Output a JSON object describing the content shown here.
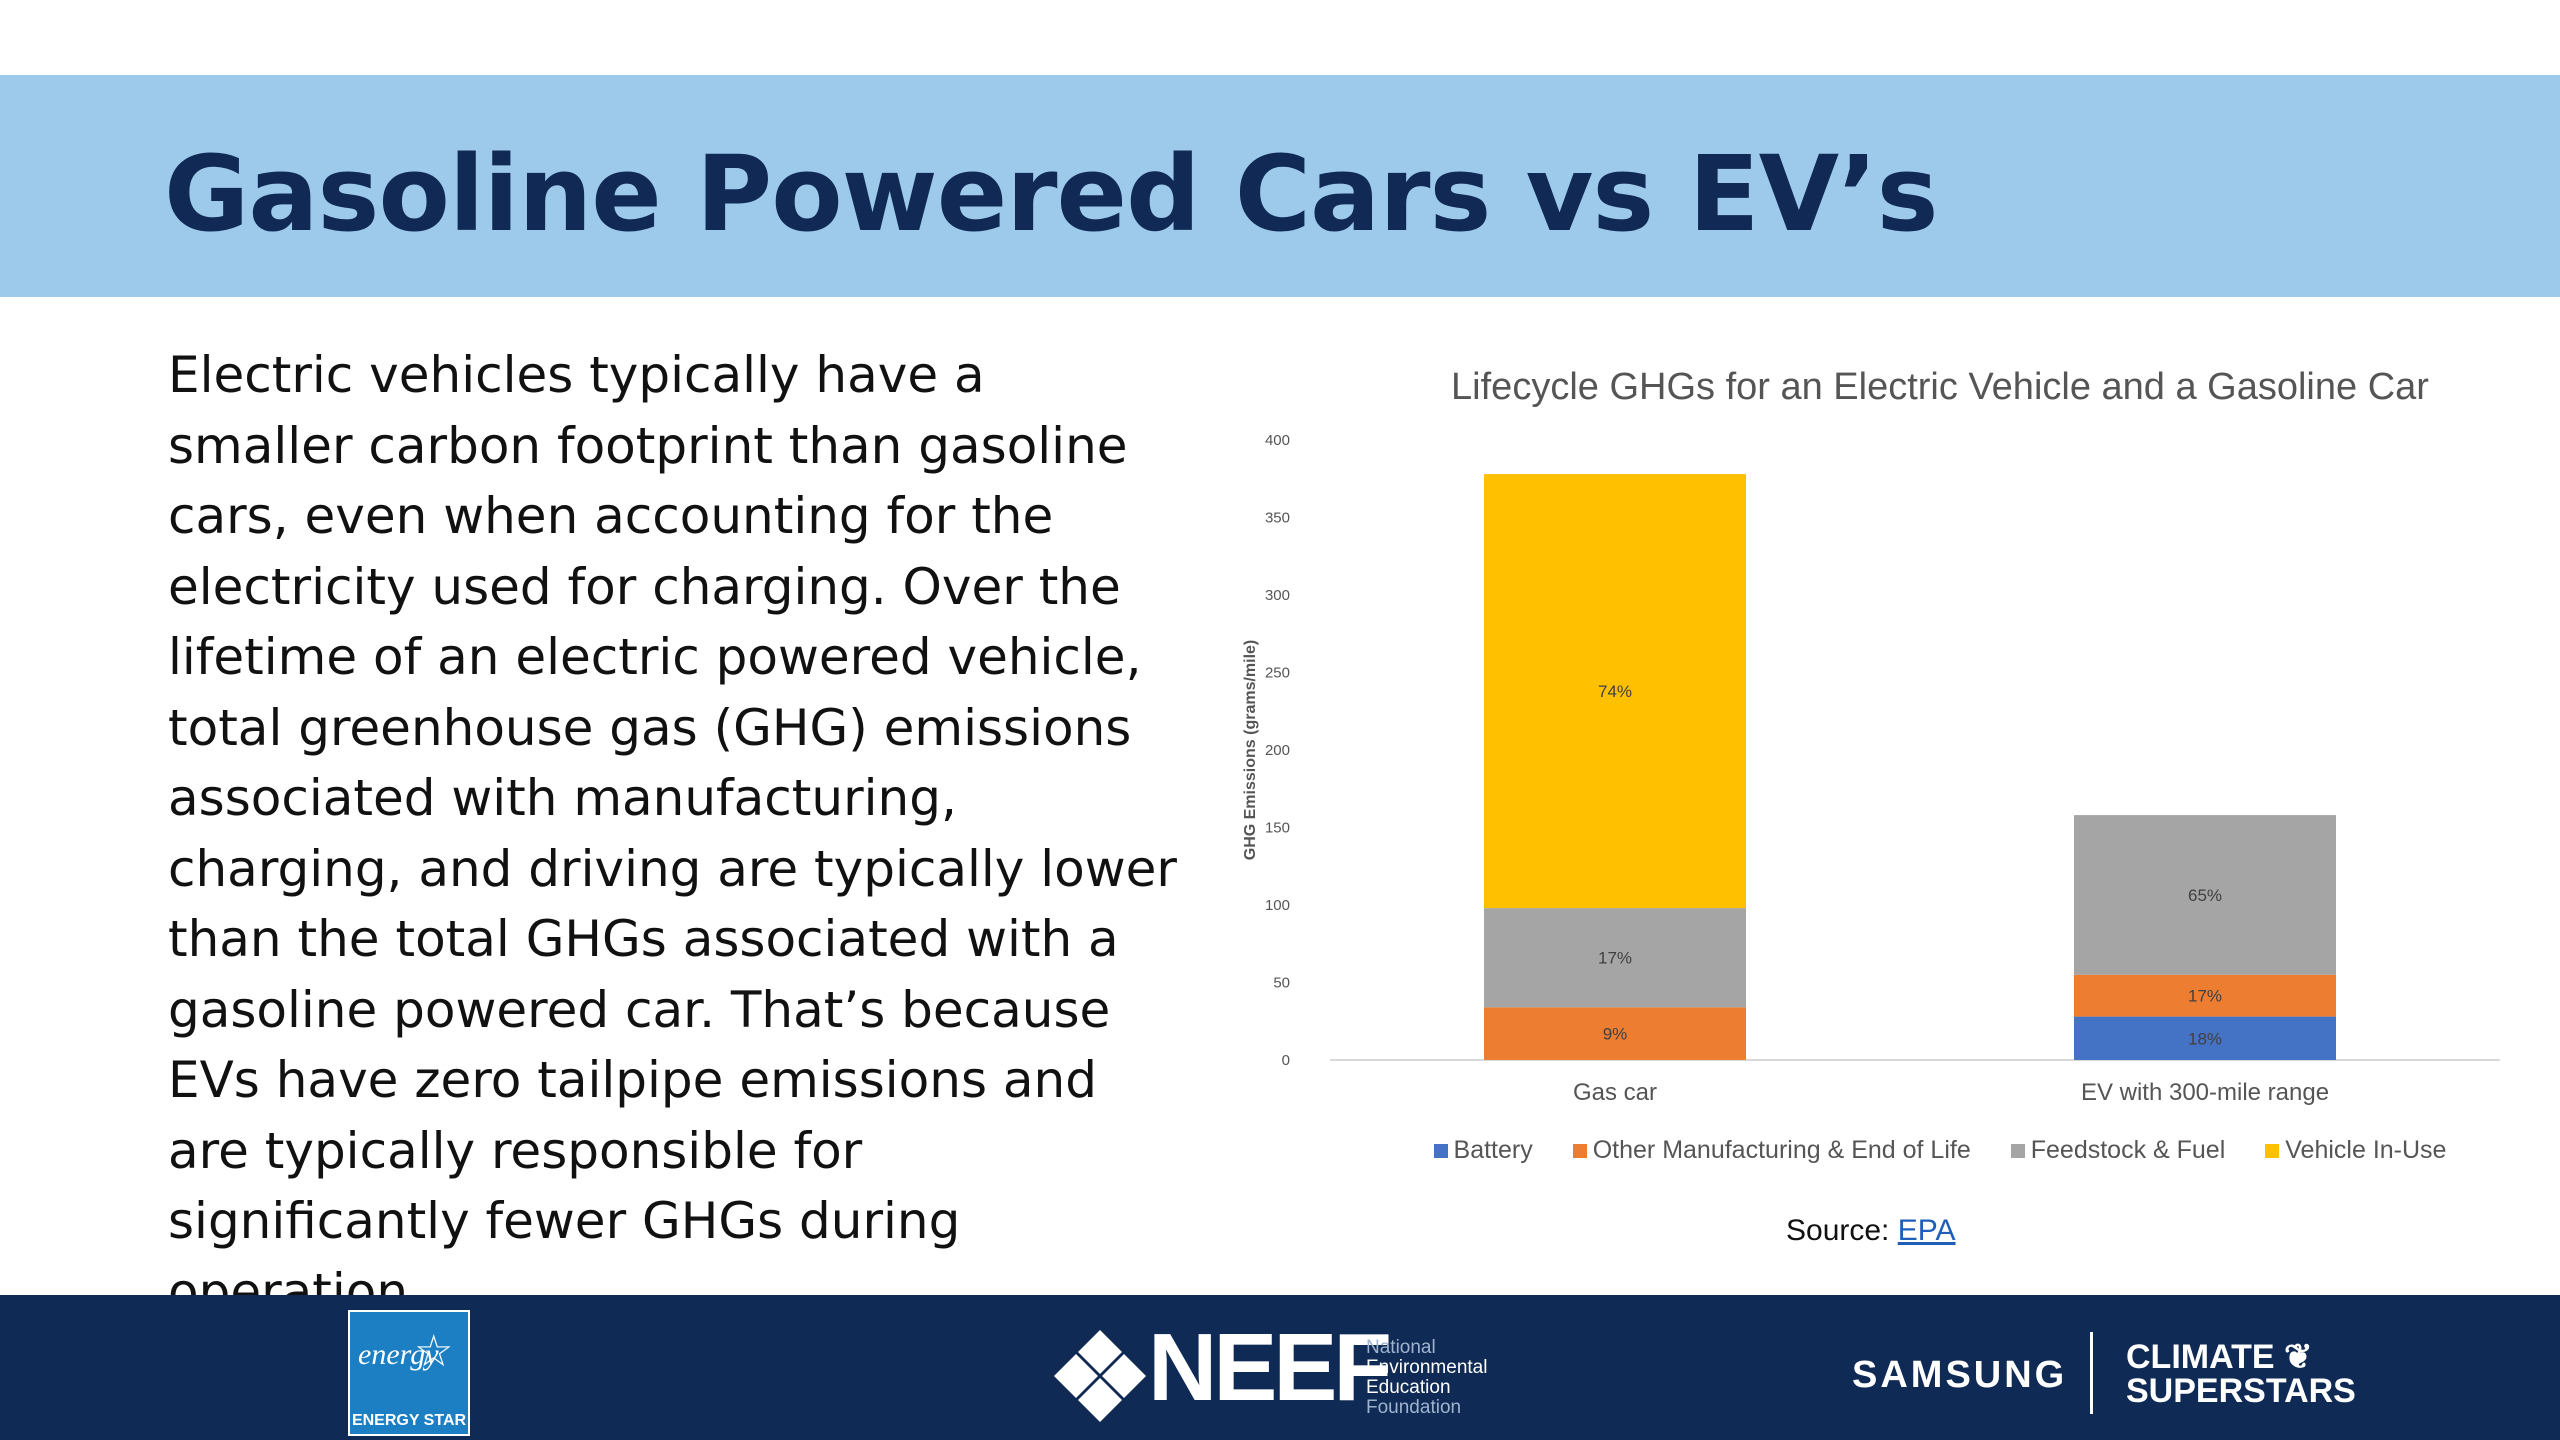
{
  "slide": {
    "title": "Gasoline Powered Cars vs EV’s",
    "body": "Electric vehicles typically have a smaller carbon footprint than gasoline cars, even when accounting for the electricity used for charging. Over the lifetime of an electric powered vehicle, total greenhouse gas (GHG) emissions associated with manufacturing, charging, and driving are typically lower than the total GHGs associated with a gasoline powered car. That’s because EVs have zero tailpipe emissions and are typically responsible for significantly fewer GHGs during operation.",
    "source_label": "Source:",
    "source_link": "EPA"
  },
  "chart_data": {
    "type": "bar",
    "stacked": true,
    "title": "Lifecycle GHGs for an Electric Vehicle and a Gasoline Car",
    "xlabel": "",
    "ylabel": "GHG Emissions (grams/mile)",
    "ylim": [
      0,
      400
    ],
    "yticks": [
      0,
      50,
      100,
      150,
      200,
      250,
      300,
      350,
      400
    ],
    "grid": false,
    "legend_position": "bottom",
    "categories": [
      "Gas car",
      "EV with 300-mile range"
    ],
    "series": [
      {
        "name": "Battery",
        "color": "#4472c4",
        "values": [
          0,
          28
        ],
        "labels": [
          "",
          "18%"
        ]
      },
      {
        "name": "Other Manufacturing & End of Life",
        "color": "#ed7d31",
        "values": [
          34,
          27
        ],
        "labels": [
          "9%",
          "17%"
        ]
      },
      {
        "name": "Feedstock & Fuel",
        "color": "#a5a5a5",
        "values": [
          64,
          103
        ],
        "labels": [
          "17%",
          "65%"
        ]
      },
      {
        "name": "Vehicle In-Use",
        "color": "#ffc000",
        "values": [
          280,
          0
        ],
        "labels": [
          "74%",
          ""
        ]
      }
    ]
  },
  "footer": {
    "energy_star_script": "energy",
    "energy_star_label": "ENERGY STAR",
    "neef_word": "NEEF",
    "neef_sub": [
      "National",
      "Environmental",
      "Education",
      "Foundation"
    ],
    "samsung": "SAMSUNG",
    "climate_line1": "CLIMATE",
    "climate_line2": "SUPERSTARS",
    "colors": {
      "banner": "#9dc9ea",
      "footer": "#0e2a55",
      "title": "#102a55"
    }
  }
}
